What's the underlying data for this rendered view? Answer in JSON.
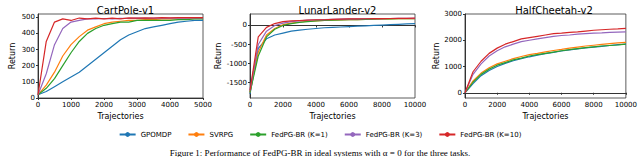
{
  "caption": "Figure 1: Performance of FedPG-BR in ideal systems with α = 0 for the three tasks.",
  "chart_data": [
    {
      "type": "line",
      "title": "CartPole-v1",
      "x_label": "Trajectories",
      "y_label": "Return",
      "grid": false,
      "legend": "bottom",
      "x": [
        0,
        250,
        500,
        750,
        1000,
        1250,
        1500,
        1750,
        2000,
        2250,
        2500,
        2750,
        3000,
        3250,
        3500,
        3750,
        4000,
        4250,
        4500,
        4750,
        5000
      ],
      "xlim": [
        0,
        5000
      ],
      "xticks": [
        0,
        1000,
        2000,
        3000,
        4000,
        5000
      ],
      "ylim": [
        0,
        520
      ],
      "yticks": [
        0,
        100,
        200,
        300,
        400,
        500
      ],
      "series": [
        {
          "name": "GPOMDP",
          "color": "#1f77b4",
          "values": [
            20,
            40,
            70,
            100,
            130,
            160,
            200,
            240,
            280,
            320,
            360,
            390,
            410,
            430,
            440,
            450,
            460,
            470,
            475,
            480,
            480
          ]
        },
        {
          "name": "SVRPG",
          "color": "#ff7f0e",
          "values": [
            20,
            80,
            160,
            260,
            330,
            380,
            420,
            440,
            460,
            470,
            475,
            480,
            480,
            485,
            485,
            490,
            490,
            490,
            490,
            492,
            492
          ]
        },
        {
          "name": "FedPG-BR (K=1)",
          "color": "#2ca02c",
          "values": [
            20,
            60,
            120,
            200,
            280,
            350,
            400,
            430,
            450,
            460,
            470,
            470,
            480,
            480,
            480,
            480,
            480,
            485,
            485,
            490,
            490
          ]
        },
        {
          "name": "FedPG-BR (K=3)",
          "color": "#9467bd",
          "values": [
            20,
            150,
            330,
            430,
            470,
            480,
            490,
            490,
            492,
            490,
            493,
            492,
            494,
            493,
            494,
            495,
            494,
            495,
            495,
            496,
            496
          ]
        },
        {
          "name": "FedPG-BR (K=10)",
          "color": "#d62728",
          "values": [
            20,
            350,
            470,
            490,
            480,
            495,
            490,
            495,
            490,
            495,
            490,
            496,
            494,
            496,
            495,
            497,
            496,
            497,
            497,
            498,
            498
          ]
        }
      ]
    },
    {
      "type": "line",
      "title": "LunarLander-v2",
      "x_label": "Trajectories",
      "y_label": "Return",
      "grid": false,
      "x": [
        0,
        500,
        1000,
        1500,
        2000,
        2500,
        3000,
        3500,
        4000,
        4500,
        5000,
        5500,
        6000,
        6500,
        7000,
        7500,
        8000,
        8500,
        9000,
        9500,
        10000
      ],
      "xlim": [
        0,
        10000
      ],
      "xticks": [
        0,
        2000,
        4000,
        6000,
        8000,
        10000
      ],
      "ylim": [
        -1900,
        300
      ],
      "yticks": [
        -1500,
        -1000,
        -500,
        0
      ],
      "series": [
        {
          "name": "GPOMDP",
          "color": "#1f77b4",
          "values": [
            -1800,
            -600,
            -350,
            -250,
            -200,
            -150,
            -120,
            -100,
            -80,
            -60,
            -50,
            -40,
            -30,
            -20,
            -10,
            0,
            10,
            20,
            30,
            40,
            50
          ]
        },
        {
          "name": "SVRPG",
          "color": "#ff7f0e",
          "values": [
            -1750,
            -700,
            -250,
            -80,
            20,
            60,
            90,
            110,
            120,
            130,
            140,
            145,
            150,
            155,
            160,
            165,
            170,
            170,
            175,
            175,
            180
          ]
        },
        {
          "name": "FedPG-BR (K=1)",
          "color": "#2ca02c",
          "values": [
            -1750,
            -800,
            -300,
            -100,
            0,
            50,
            80,
            100,
            120,
            130,
            140,
            145,
            150,
            155,
            160,
            165,
            170,
            172,
            175,
            178,
            180
          ]
        },
        {
          "name": "FedPG-BR (K=3)",
          "color": "#9467bd",
          "values": [
            -1700,
            -500,
            -150,
            0,
            60,
            100,
            120,
            140,
            150,
            155,
            160,
            165,
            170,
            172,
            175,
            178,
            180,
            182,
            185,
            186,
            188
          ]
        },
        {
          "name": "FedPG-BR (K=10)",
          "color": "#d62728",
          "values": [
            -1700,
            -300,
            -50,
            50,
            100,
            120,
            130,
            140,
            150,
            150,
            160,
            165,
            170,
            172,
            175,
            178,
            180,
            182,
            185,
            186,
            190
          ]
        }
      ]
    },
    {
      "type": "line",
      "title": "HalfCheetah-v2",
      "x_label": "Trajectories",
      "y_label": "Return",
      "grid": false,
      "x": [
        0,
        500,
        1000,
        1500,
        2000,
        2500,
        3000,
        3500,
        4000,
        4500,
        5000,
        5500,
        6000,
        6500,
        7000,
        7500,
        8000,
        8500,
        9000,
        9500,
        10000
      ],
      "xlim": [
        0,
        10000
      ],
      "xticks": [
        0,
        2000,
        4000,
        6000,
        8000,
        10000
      ],
      "ylim": [
        -200,
        3000
      ],
      "yticks": [
        0,
        1000,
        2000,
        3000
      ],
      "series": [
        {
          "name": "GPOMDP",
          "color": "#1f77b4",
          "values": [
            0,
            350,
            650,
            850,
            1000,
            1120,
            1220,
            1300,
            1370,
            1430,
            1490,
            1540,
            1590,
            1630,
            1670,
            1710,
            1740,
            1770,
            1800,
            1830,
            1850
          ]
        },
        {
          "name": "SVRPG",
          "color": "#ff7f0e",
          "values": [
            0,
            450,
            750,
            950,
            1100,
            1200,
            1300,
            1380,
            1450,
            1500,
            1560,
            1610,
            1650,
            1700,
            1740,
            1780,
            1810,
            1840,
            1870,
            1900,
            1920
          ]
        },
        {
          "name": "FedPG-BR (K=1)",
          "color": "#2ca02c",
          "values": [
            0,
            400,
            700,
            900,
            1050,
            1150,
            1250,
            1320,
            1400,
            1450,
            1500,
            1550,
            1600,
            1640,
            1680,
            1720,
            1750,
            1780,
            1800,
            1820,
            1850
          ]
        },
        {
          "name": "FedPG-BR (K=3)",
          "color": "#9467bd",
          "values": [
            0,
            700,
            1100,
            1400,
            1600,
            1750,
            1850,
            1950,
            2000,
            2050,
            2100,
            2150,
            2180,
            2200,
            2230,
            2250,
            2270,
            2280,
            2300,
            2310,
            2320
          ]
        },
        {
          "name": "FedPG-BR (K=10)",
          "color": "#d62728",
          "values": [
            0,
            800,
            1200,
            1500,
            1700,
            1850,
            1950,
            2050,
            2100,
            2150,
            2200,
            2250,
            2270,
            2300,
            2320,
            2350,
            2380,
            2400,
            2420,
            2430,
            2450
          ]
        }
      ]
    }
  ]
}
